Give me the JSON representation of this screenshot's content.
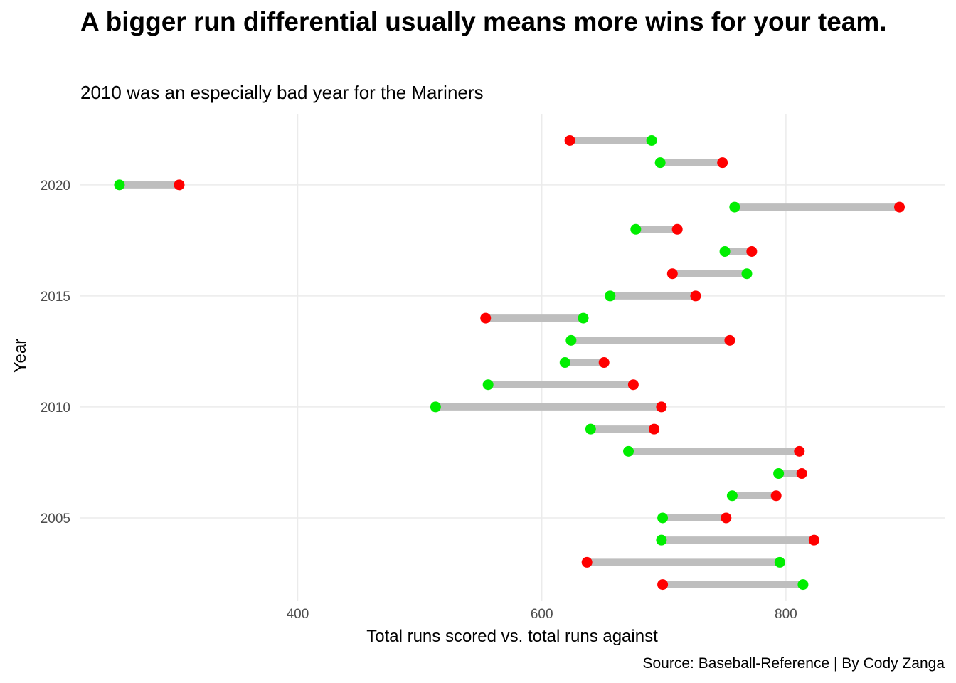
{
  "chart_data": {
    "type": "dumbbell",
    "title": "A bigger run differential usually means more wins for your team.",
    "subtitle": "2010 was an especially bad year for the Mariners",
    "caption": "Source: Baseball-Reference | By Cody Zanga",
    "xlabel": "Total runs scored vs. total runs against",
    "ylabel": "Year",
    "xlim": [
      222,
      930
    ],
    "ylim": [
      2001.25,
      2023.2
    ],
    "x_ticks": [
      400,
      600,
      800
    ],
    "y_ticks": [
      2005,
      2010,
      2015,
      2020
    ],
    "grid": true,
    "colors": {
      "runs_scored": "#00ee00",
      "runs_against": "#ff0000",
      "connector": "#bebebe",
      "grid": "#ebebeb"
    },
    "series": [
      {
        "key": "runs_scored"
      },
      {
        "key": "runs_against"
      }
    ],
    "points": [
      {
        "year": 2002,
        "runs_scored": 814,
        "runs_against": 699
      },
      {
        "year": 2003,
        "runs_scored": 795,
        "runs_against": 637
      },
      {
        "year": 2004,
        "runs_scored": 698,
        "runs_against": 823
      },
      {
        "year": 2005,
        "runs_scored": 699,
        "runs_against": 751
      },
      {
        "year": 2006,
        "runs_scored": 756,
        "runs_against": 792
      },
      {
        "year": 2007,
        "runs_scored": 794,
        "runs_against": 813
      },
      {
        "year": 2008,
        "runs_scored": 671,
        "runs_against": 811
      },
      {
        "year": 2009,
        "runs_scored": 640,
        "runs_against": 692
      },
      {
        "year": 2010,
        "runs_scored": 513,
        "runs_against": 698
      },
      {
        "year": 2011,
        "runs_scored": 556,
        "runs_against": 675
      },
      {
        "year": 2012,
        "runs_scored": 619,
        "runs_against": 651
      },
      {
        "year": 2013,
        "runs_scored": 624,
        "runs_against": 754
      },
      {
        "year": 2014,
        "runs_scored": 634,
        "runs_against": 554
      },
      {
        "year": 2015,
        "runs_scored": 656,
        "runs_against": 726
      },
      {
        "year": 2016,
        "runs_scored": 768,
        "runs_against": 707
      },
      {
        "year": 2017,
        "runs_scored": 750,
        "runs_against": 772
      },
      {
        "year": 2018,
        "runs_scored": 677,
        "runs_against": 711
      },
      {
        "year": 2019,
        "runs_scored": 758,
        "runs_against": 893
      },
      {
        "year": 2020,
        "runs_scored": 254,
        "runs_against": 303
      },
      {
        "year": 2021,
        "runs_scored": 697,
        "runs_against": 748
      },
      {
        "year": 2022,
        "runs_scored": 690,
        "runs_against": 623
      }
    ]
  }
}
